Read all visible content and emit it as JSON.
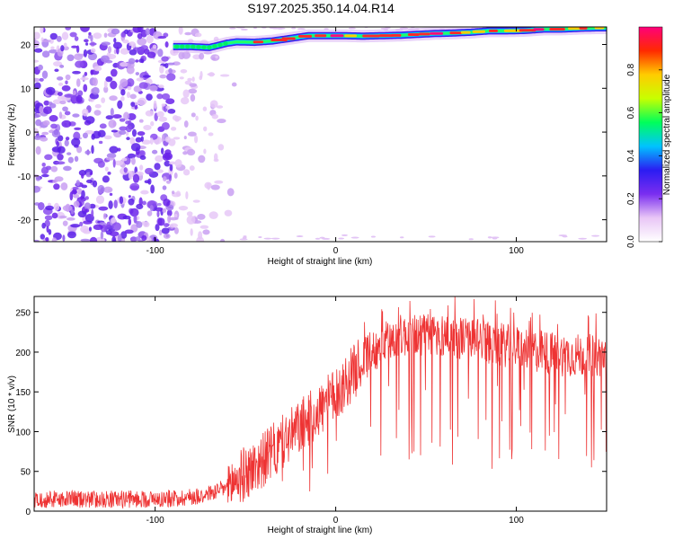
{
  "title": "S197.2025.350.14.04.R14",
  "chart_data": [
    {
      "type": "heatmap",
      "title": "S197.2025.350.14.04.R14",
      "xlabel": "Height of straight line (km)",
      "ylabel": "Frequency (Hz)",
      "xlim": [
        -167,
        150
      ],
      "ylim": [
        -25,
        24
      ],
      "xticks": [
        -100,
        0,
        100
      ],
      "yticks": [
        -20,
        -10,
        0,
        10,
        20
      ],
      "colorbar": {
        "label": "Normalized spectral amplitude",
        "range": [
          0.0,
          1.0
        ],
        "ticks": [
          0.0,
          0.2,
          0.4,
          0.6,
          0.8
        ],
        "colors": [
          "#ffffff",
          "#e9c6f6",
          "#7a2ef0",
          "#2b1cf2",
          "#00c3ff",
          "#00ff5a",
          "#c8ff00",
          "#ffcc00",
          "#ff2a00",
          "#ff007a"
        ]
      },
      "ridge": {
        "x": [
          -90,
          -80,
          -70,
          -60,
          -55,
          -45,
          -35,
          -25,
          -15,
          -5,
          5,
          15,
          25,
          35,
          45,
          55,
          65,
          75,
          85,
          95,
          105,
          115,
          125,
          135,
          145,
          150
        ],
        "y": [
          19.5,
          19.5,
          19.3,
          20.3,
          20.6,
          20.5,
          20.8,
          21.4,
          22.0,
          22.0,
          22.0,
          21.9,
          22.0,
          22.1,
          22.3,
          22.5,
          22.6,
          22.8,
          23.1,
          23.1,
          23.2,
          23.5,
          23.5,
          23.7,
          23.8,
          23.8
        ]
      },
      "noise_region": {
        "x": [
          -167,
          -55
        ],
        "y": [
          -25,
          24
        ]
      }
    },
    {
      "type": "line",
      "xlabel": "Height of straight line (km)",
      "ylabel": "SNR (10 * v/v)",
      "xlim": [
        -167,
        150
      ],
      "ylim": [
        0,
        270
      ],
      "xticks": [
        -100,
        0,
        100
      ],
      "yticks": [
        0,
        50,
        100,
        150,
        200,
        250
      ],
      "series": [
        {
          "name": "SNR",
          "color": "#ee3333",
          "x": [
            -167,
            -150,
            -130,
            -110,
            -90,
            -80,
            -70,
            -60,
            -55,
            -45,
            -35,
            -25,
            -15,
            -5,
            5,
            15,
            25,
            35,
            45,
            55,
            65,
            75,
            85,
            95,
            105,
            115,
            125,
            135,
            145,
            150
          ],
          "y": [
            15,
            15,
            15,
            15,
            16,
            18,
            22,
            30,
            40,
            55,
            75,
            95,
            115,
            135,
            160,
            190,
            210,
            220,
            222,
            222,
            220,
            216,
            212,
            208,
            204,
            200,
            197,
            196,
            196,
            196
          ]
        }
      ]
    }
  ]
}
